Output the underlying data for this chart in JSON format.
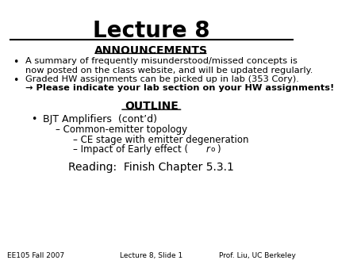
{
  "title": "Lecture 8",
  "announcements_header": "ANNOUNCEMENTS",
  "bullet1_line1": "A summary of frequently misunderstood/missed concepts is",
  "bullet1_line2": "now posted on the class website, and will be updated regularly.",
  "bullet2_line1": "Graded HW assignments can be picked up in lab (353 Cory).",
  "bullet2_line2_arrow": "→ Please indicate your lab section on your HW assignments!",
  "outline_header": "OUTLINE",
  "outline_bullet": "BJT Amplifiers  (cont’d)",
  "sub1": "Common-emitter topology",
  "sub2": "CE stage with emitter degeneration",
  "sub3_prefix": "– Impact of Early effect (",
  "sub3_italic": "r",
  "sub3_sub": "o",
  "sub3_end": ")",
  "reading": "Reading:  Finish Chapter 5.3.1",
  "footer_left": "EE105 Fall 2007",
  "footer_center": "Lecture 8, Slide 1",
  "footer_right": "Prof. Liu, UC Berkeley",
  "bg_color": "#ffffff",
  "text_color": "#000000"
}
